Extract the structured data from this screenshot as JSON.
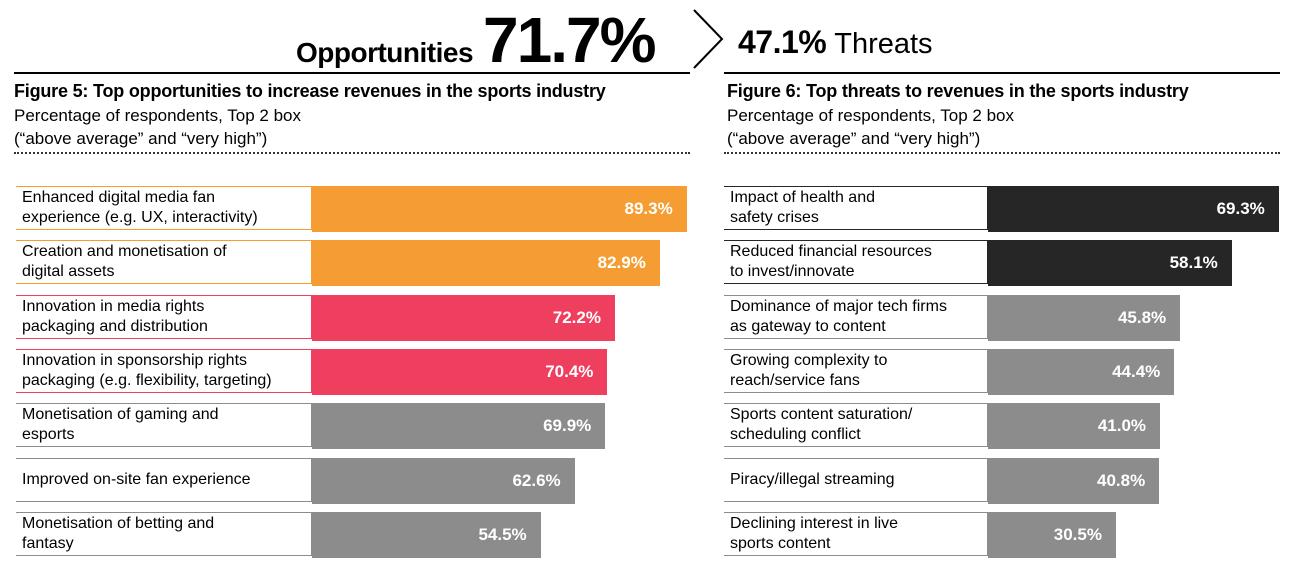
{
  "header": {
    "opportunities_label": "Opportunities",
    "opportunities_value": "71.7%",
    "threats_value": "47.1%",
    "threats_label": "Threats"
  },
  "colors": {
    "orange": "#f59d32",
    "pink": "#ee3f5f",
    "grey": "#8c8c8d",
    "black": "#262626"
  },
  "chart_data": [
    {
      "type": "bar",
      "orientation": "horizontal",
      "title": "Figure 5: Top opportunities to increase revenues in the sports industry",
      "subtitle_lines": [
        "Percentage of respondents, Top 2 box",
        "(“above average” and “very high”)"
      ],
      "categories": [
        [
          "Enhanced digital media fan",
          "experience (e.g. UX, interactivity)"
        ],
        [
          "Creation and monetisation of",
          "digital assets"
        ],
        [
          "Innovation in media rights",
          "packaging and distribution"
        ],
        [
          "Innovation in sponsorship rights",
          "packaging (e.g. flexibility, targeting)"
        ],
        [
          "Monetisation of gaming and",
          "esports"
        ],
        [
          "Improved on-site fan experience"
        ],
        [
          "Monetisation of betting and",
          "fantasy"
        ]
      ],
      "values": [
        89.3,
        82.9,
        72.2,
        70.4,
        69.9,
        62.6,
        54.5
      ],
      "value_labels": [
        "89.3%",
        "82.9%",
        "72.2%",
        "70.4%",
        "69.9%",
        "62.6%",
        "54.5%"
      ],
      "bar_colors": [
        "orange",
        "orange",
        "pink",
        "pink",
        "grey",
        "grey",
        "grey"
      ],
      "label_border_colors": [
        "orange",
        "orange",
        "pink",
        "pink",
        "grey",
        "grey",
        "grey"
      ],
      "xlim": [
        0,
        100
      ]
    },
    {
      "type": "bar",
      "orientation": "horizontal",
      "title": "Figure 6: Top threats to revenues in the sports industry",
      "subtitle_lines": [
        "Percentage of respondents, Top 2 box",
        "(“above average” and “very high”)"
      ],
      "categories": [
        [
          "Impact of health and",
          "safety crises"
        ],
        [
          "Reduced financial resources",
          "to invest/innovate"
        ],
        [
          "Dominance of major tech firms",
          "as gateway to content"
        ],
        [
          "Growing complexity to",
          "reach/service fans"
        ],
        [
          "Sports content saturation/",
          "scheduling conflict"
        ],
        [
          "Piracy/illegal streaming"
        ],
        [
          "Declining interest in live",
          "sports content"
        ]
      ],
      "values": [
        69.3,
        58.1,
        45.8,
        44.4,
        41.0,
        40.8,
        30.5
      ],
      "value_labels": [
        "69.3%",
        "58.1%",
        "45.8%",
        "44.4%",
        "41.0%",
        "40.8%",
        "30.5%"
      ],
      "bar_colors": [
        "black",
        "black",
        "grey",
        "grey",
        "grey",
        "grey",
        "grey"
      ],
      "label_border_colors": [
        "black",
        "black",
        "grey",
        "grey",
        "grey",
        "grey",
        "grey"
      ],
      "xlim": [
        0,
        100
      ]
    }
  ]
}
